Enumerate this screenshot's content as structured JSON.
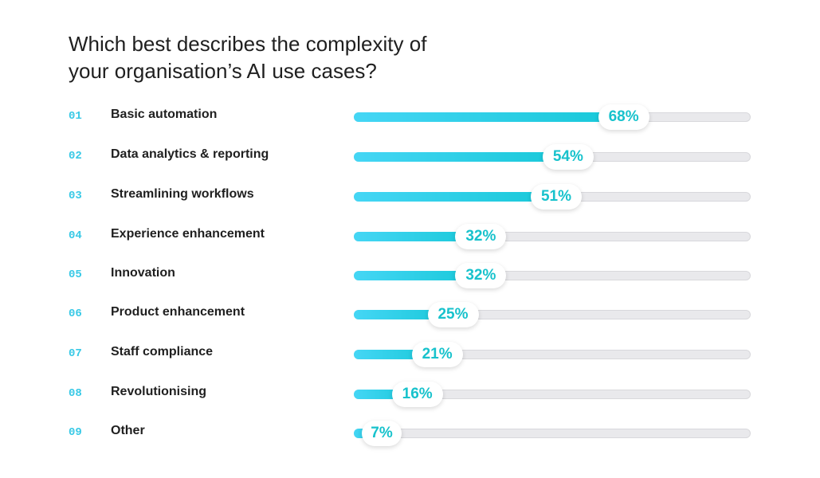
{
  "title": "Which best describes the complexity of\nyour organisation’s AI use cases?",
  "accent_color": "#17c8d8",
  "chart_data": {
    "type": "bar",
    "orientation": "horizontal",
    "title": "Which best describes the complexity of your organisation’s AI use cases?",
    "unit": "%",
    "xlim": [
      0,
      100
    ],
    "grid": false,
    "items": [
      {
        "num": "01",
        "label": "Basic automation",
        "value": 68,
        "value_label": "68%"
      },
      {
        "num": "02",
        "label": "Data analytics & reporting",
        "value": 54,
        "value_label": "54%"
      },
      {
        "num": "03",
        "label": "Streamlining workflows",
        "value": 51,
        "value_label": "51%"
      },
      {
        "num": "04",
        "label": "Experience enhancement",
        "value": 32,
        "value_label": "32%"
      },
      {
        "num": "05",
        "label": "Innovation",
        "value": 32,
        "value_label": "32%"
      },
      {
        "num": "06",
        "label": "Product enhancement",
        "value": 25,
        "value_label": "25%"
      },
      {
        "num": "07",
        "label": "Staff compliance",
        "value": 21,
        "value_label": "21%"
      },
      {
        "num": "08",
        "label": "Revolutionising",
        "value": 16,
        "value_label": "16%"
      },
      {
        "num": "09",
        "label": "Other",
        "value": 7,
        "value_label": "7%"
      }
    ]
  }
}
